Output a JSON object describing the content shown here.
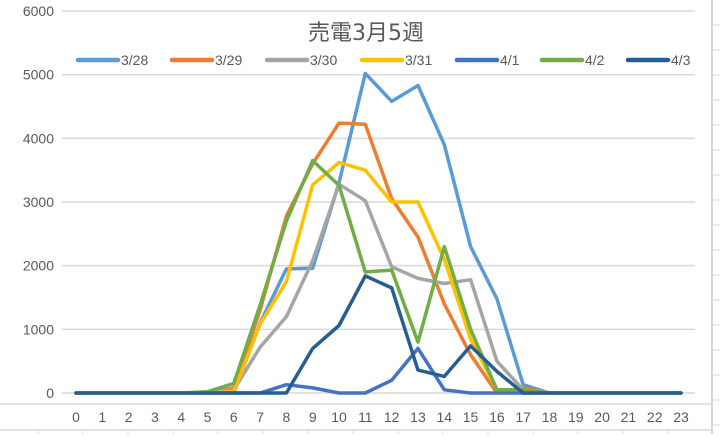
{
  "chart_data": {
    "type": "line",
    "title": "売電3月5週",
    "xlabel": "",
    "ylabel": "",
    "x": [
      0,
      1,
      2,
      3,
      4,
      5,
      6,
      7,
      8,
      9,
      10,
      11,
      12,
      13,
      14,
      15,
      16,
      17,
      18,
      19,
      20,
      21,
      22,
      23
    ],
    "x_tick_labels": [
      "0",
      "1",
      "2",
      "3",
      "4",
      "5",
      "6",
      "7",
      "8",
      "9",
      "10",
      "11",
      "12",
      "13",
      "14",
      "15",
      "16",
      "17",
      "18",
      "19",
      "20",
      "21",
      "22",
      "23"
    ],
    "y_tick_labels": [
      "0",
      "1000",
      "2000",
      "3000",
      "4000",
      "5000",
      "6000"
    ],
    "ylim": [
      0,
      6000
    ],
    "grid": true,
    "legend_position": "top",
    "series": [
      {
        "name": "3/28",
        "color": "#5B9BD5",
        "values": [
          0,
          0,
          0,
          0,
          0,
          0,
          0,
          1100,
          1950,
          1960,
          3300,
          5020,
          4580,
          4830,
          3900,
          2300,
          1480,
          130,
          0,
          0,
          0,
          0,
          0,
          0
        ]
      },
      {
        "name": "3/29",
        "color": "#ED7D31",
        "values": [
          0,
          0,
          0,
          0,
          0,
          0,
          80,
          1300,
          2780,
          3600,
          4240,
          4220,
          3050,
          2450,
          1400,
          600,
          0,
          80,
          0,
          0,
          0,
          0,
          0,
          0
        ]
      },
      {
        "name": "3/30",
        "color": "#A5A5A5",
        "values": [
          0,
          0,
          0,
          0,
          0,
          0,
          50,
          720,
          1200,
          2080,
          3280,
          3020,
          1980,
          1800,
          1720,
          1780,
          500,
          50,
          0,
          0,
          0,
          0,
          0,
          0
        ]
      },
      {
        "name": "3/31",
        "color": "#FFC000",
        "values": [
          0,
          0,
          0,
          0,
          0,
          0,
          20,
          1080,
          1750,
          3270,
          3620,
          3500,
          3000,
          3000,
          2100,
          850,
          50,
          0,
          0,
          0,
          0,
          0,
          0,
          0
        ]
      },
      {
        "name": "4/1",
        "color": "#4472C4",
        "values": [
          0,
          0,
          0,
          0,
          0,
          0,
          0,
          0,
          130,
          80,
          0,
          0,
          200,
          700,
          50,
          0,
          0,
          0,
          0,
          0,
          0,
          0,
          0,
          0
        ]
      },
      {
        "name": "4/2",
        "color": "#70AD47",
        "values": [
          0,
          0,
          0,
          0,
          0,
          20,
          150,
          1380,
          2700,
          3650,
          3260,
          1900,
          1930,
          800,
          2300,
          1000,
          50,
          50,
          0,
          0,
          0,
          0,
          0,
          0
        ]
      },
      {
        "name": "4/3",
        "color": "#255E91",
        "values": [
          0,
          0,
          0,
          0,
          0,
          0,
          0,
          0,
          0,
          700,
          1060,
          1840,
          1650,
          360,
          260,
          740,
          340,
          0,
          0,
          0,
          0,
          0,
          0,
          0
        ]
      }
    ]
  }
}
